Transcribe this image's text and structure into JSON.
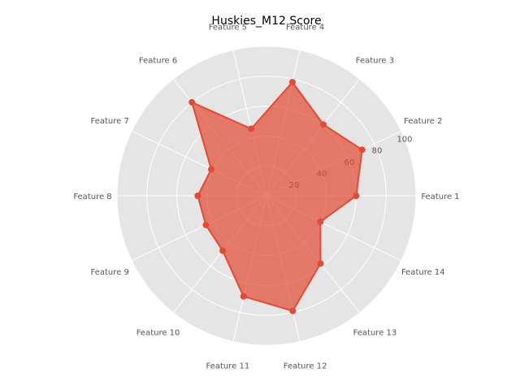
{
  "chart_data": {
    "type": "radar",
    "title": "Huskies_M12 Score",
    "categories": [
      "Feature 1",
      "Feature 2",
      "Feature 3",
      "Feature 4",
      "Feature 5",
      "Feature 6",
      "Feature 7",
      "Feature 8",
      "Feature 9",
      "Feature 10",
      "Feature 11",
      "Feature 12",
      "Feature 13",
      "Feature 14"
    ],
    "series": [
      {
        "values": [
          60,
          71,
          61,
          78,
          46,
          80,
          41,
          46,
          45,
          47,
          69,
          79,
          58,
          40
        ],
        "color": "#E24A33"
      }
    ],
    "r_ticks": [
      "20",
      "40",
      "60",
      "80",
      "100"
    ],
    "r_tick_values": [
      20,
      40,
      60,
      80,
      100
    ],
    "rlim": [
      0,
      100
    ],
    "grid": true,
    "background_color": "#E5E5E5"
  }
}
